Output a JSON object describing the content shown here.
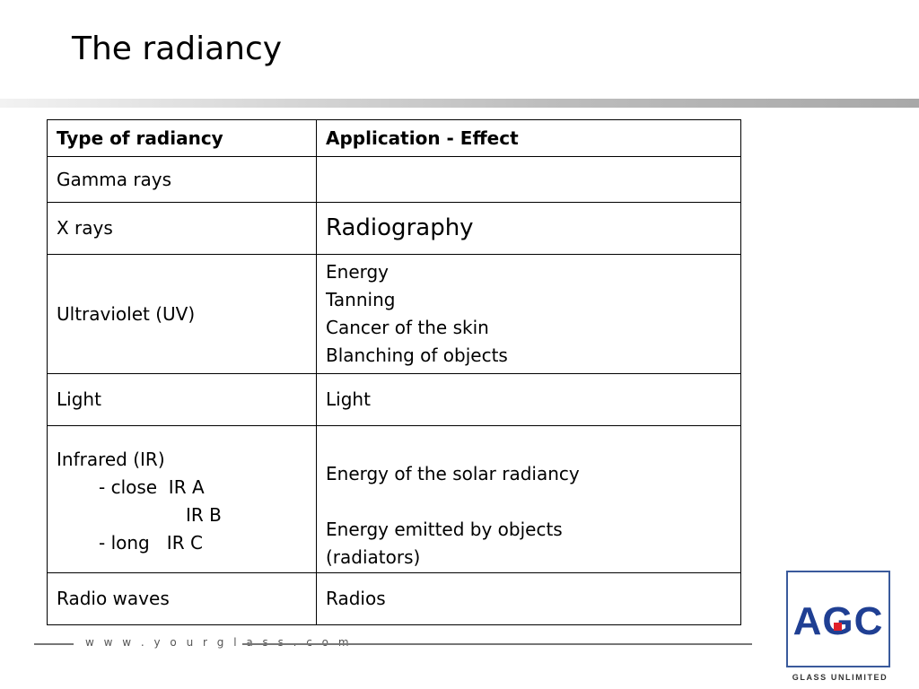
{
  "header": {
    "title": "The radiancy"
  },
  "table": {
    "columns": [
      "Type of radiancy",
      "Application - Effect"
    ],
    "rows": [
      {
        "type": [
          "Gamma rays"
        ],
        "effect": []
      },
      {
        "type": [
          "X rays"
        ],
        "effect": [
          "Radiography"
        ]
      },
      {
        "type": [
          "Ultraviolet (UV)"
        ],
        "effect": [
          "Energy",
          "Tanning",
          "Cancer of the skin",
          "Blanching of objects"
        ]
      },
      {
        "type": [
          "Light"
        ],
        "effect": [
          "Light"
        ]
      },
      {
        "type": [
          "Infrared (IR)",
          "- close  IR A",
          "IR B",
          "- long   IR C"
        ],
        "effect": [
          "Energy of the solar radiancy",
          "Energy emitted by objects",
          "(radiators)"
        ]
      },
      {
        "type": [
          "Radio waves"
        ],
        "effect": [
          "Radios"
        ]
      }
    ]
  },
  "footer": {
    "url": "w w w . y o u r g l a s s . c o m",
    "logo": "AGC",
    "slogan": "GLASS UNLIMITED"
  }
}
